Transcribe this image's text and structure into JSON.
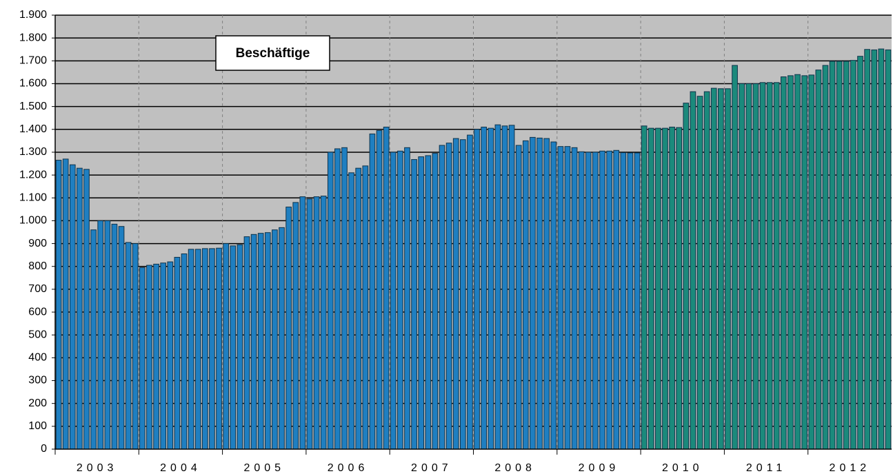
{
  "chart_data": {
    "type": "bar",
    "annotation": "Beschäftige",
    "groups": [
      "2003",
      "2004",
      "2005",
      "2006",
      "2007",
      "2008",
      "2009",
      "2010",
      "2011",
      "2012"
    ],
    "series": [
      {
        "color": "#1f7fc1",
        "values": [
          1265,
          1270,
          1245,
          1230,
          1225,
          960,
          1000,
          1000,
          985,
          975,
          905,
          900,
          795,
          805,
          810,
          815,
          820,
          840,
          855,
          875,
          875,
          878,
          878,
          880,
          900,
          890,
          895,
          930,
          940,
          945,
          948,
          960,
          970,
          1060,
          1080,
          1105,
          1095,
          1105,
          1108,
          1300,
          1315,
          1320,
          1210,
          1230,
          1240,
          1380,
          1395,
          1410,
          1300,
          1305,
          1320,
          1268,
          1280,
          1285,
          1295,
          1330,
          1340,
          1360,
          1355,
          1375,
          1400,
          1410,
          1405,
          1420,
          1415,
          1418,
          1330,
          1350,
          1365,
          1362,
          1360,
          1345,
          1325,
          1325,
          1320,
          1302,
          1300,
          1300,
          1305,
          1305,
          1308,
          1298,
          1297,
          1297,
          null,
          null,
          null,
          null,
          null,
          null,
          null,
          null,
          null,
          null,
          null,
          null,
          null,
          null,
          null,
          null,
          null,
          null,
          null,
          null,
          null,
          null,
          null,
          null,
          null,
          null,
          null,
          null,
          null,
          null,
          null,
          null,
          null,
          null,
          null,
          null
        ]
      },
      {
        "color": "#1b8a7c",
        "values": [
          null,
          null,
          null,
          null,
          null,
          null,
          null,
          null,
          null,
          null,
          null,
          null,
          null,
          null,
          null,
          null,
          null,
          null,
          null,
          null,
          null,
          null,
          null,
          null,
          null,
          null,
          null,
          null,
          null,
          null,
          null,
          null,
          null,
          null,
          null,
          null,
          null,
          null,
          null,
          null,
          null,
          null,
          null,
          null,
          null,
          null,
          null,
          null,
          null,
          null,
          null,
          null,
          null,
          null,
          null,
          null,
          null,
          null,
          null,
          null,
          null,
          null,
          null,
          null,
          null,
          null,
          null,
          null,
          null,
          null,
          null,
          null,
          null,
          null,
          null,
          null,
          null,
          null,
          null,
          null,
          null,
          null,
          null,
          null,
          1415,
          1405,
          1405,
          1405,
          1410,
          1408,
          1515,
          1565,
          1545,
          1565,
          1580,
          1578,
          1578,
          1680,
          1600,
          1600,
          1600,
          1605,
          1605,
          1605,
          1630,
          1635,
          1640,
          1635,
          1638,
          1660,
          1680,
          1698,
          1698,
          1698,
          1702,
          1720,
          1750,
          1748,
          1752,
          1748
        ]
      }
    ],
    "ylim": [
      0,
      1900
    ],
    "yticks": [
      0,
      100,
      200,
      300,
      400,
      500,
      600,
      700,
      800,
      900,
      {
        "value": 1000,
        "label": "1.000"
      },
      {
        "value": 1100,
        "label": "1.100"
      },
      {
        "value": 1200,
        "label": "1.200"
      },
      {
        "value": 1300,
        "label": "1.300"
      },
      {
        "value": 1400,
        "label": "1.400"
      },
      {
        "value": 1500,
        "label": "1.500"
      },
      {
        "value": 1600,
        "label": "1.600"
      },
      {
        "value": 1700,
        "label": "1.700"
      },
      {
        "value": 1800,
        "label": "1.800"
      },
      {
        "value": 1900,
        "label": "1.900"
      }
    ],
    "grid": true,
    "background": "#c0c0c0"
  }
}
